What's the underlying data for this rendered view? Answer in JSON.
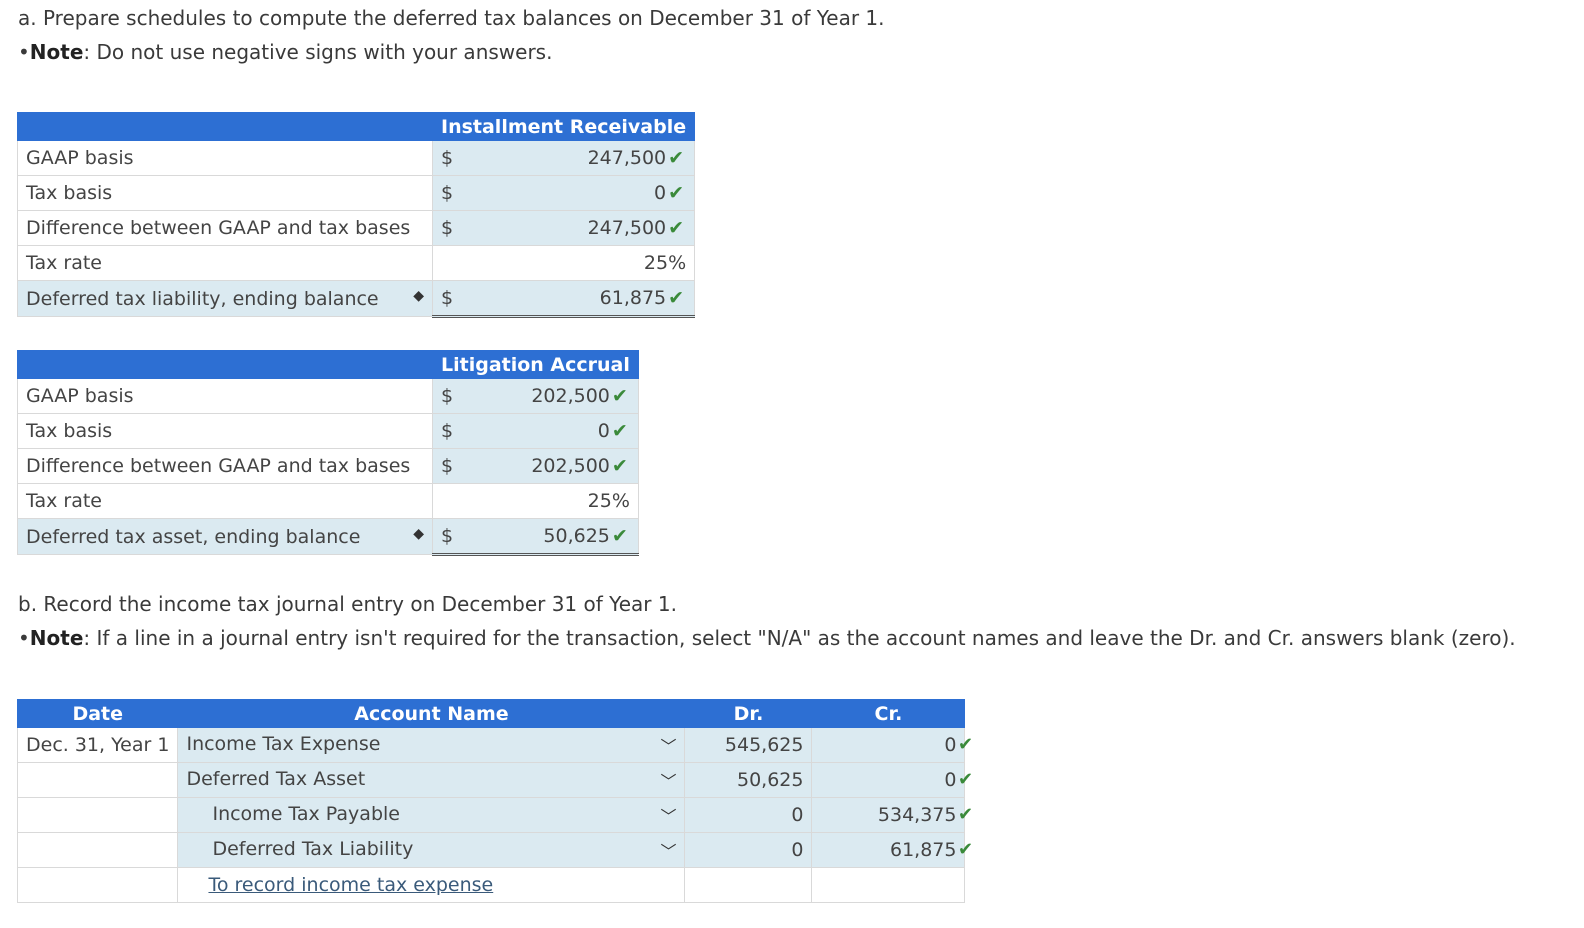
{
  "part_a": {
    "prompt": "a. Prepare schedules to compute the deferred tax balances on December 31 of Year 1.",
    "note_label": "Note",
    "note_text": ": Do not use negative signs with your answers."
  },
  "table1": {
    "header": "Installment Receivable",
    "rows": [
      {
        "label": "GAAP basis",
        "currency": "$",
        "value": "247,500"
      },
      {
        "label": "Tax basis",
        "currency": "$",
        "value": "0"
      },
      {
        "label": "Difference between GAAP and tax bases",
        "currency": "$",
        "value": "247,500"
      },
      {
        "label": "Tax rate",
        "currency": "",
        "value": "25%"
      },
      {
        "label": "Deferred tax liability, ending balance",
        "currency": "$",
        "value": "61,875"
      }
    ]
  },
  "table2": {
    "header": "Litigation Accrual",
    "rows": [
      {
        "label": "GAAP basis",
        "currency": "$",
        "value": "202,500"
      },
      {
        "label": "Tax basis",
        "currency": "$",
        "value": "0"
      },
      {
        "label": "Difference between GAAP and tax bases",
        "currency": "$",
        "value": "202,500"
      },
      {
        "label": "Tax rate",
        "currency": "",
        "value": "25%"
      },
      {
        "label": "Deferred tax asset, ending balance",
        "currency": "$",
        "value": "50,625"
      }
    ]
  },
  "part_b": {
    "prompt": "b. Record the income tax journal entry on December 31 of Year 1.",
    "note_label": "Note",
    "note_text": ": If a line in a journal entry isn't required for the transaction, select \"N/A\" as the account names and leave the Dr. and Cr. answers blank (zero)."
  },
  "journal": {
    "headers": {
      "date": "Date",
      "account": "Account Name",
      "dr": "Dr.",
      "cr": "Cr."
    },
    "rows": [
      {
        "date": "Dec. 31, Year 1",
        "account": "Income Tax Expense",
        "dr": "545,625",
        "cr": "0"
      },
      {
        "date": "",
        "account": "Deferred Tax Asset",
        "dr": "50,625",
        "cr": "0"
      },
      {
        "date": "",
        "account": "Income Tax Payable",
        "dr": "0",
        "cr": "534,375"
      },
      {
        "date": "",
        "account": "Deferred Tax Liability",
        "dr": "0",
        "cr": "61,875"
      }
    ],
    "memo": "To record income tax expense"
  },
  "icons": {
    "check": "check-icon",
    "sort": "sort-arrows-icon",
    "chevron": "chevron-down-icon"
  },
  "colors": {
    "header_bg": "#2d6fd3",
    "input_bg": "#dbeaf1",
    "check": "#3a8a3a"
  }
}
